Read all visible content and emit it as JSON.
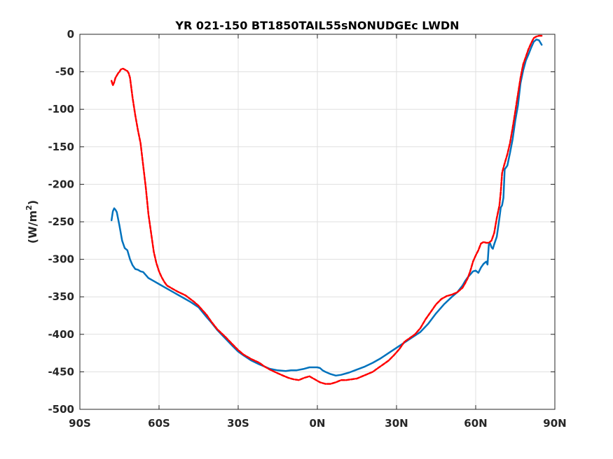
{
  "chart_data": {
    "type": "line",
    "title": "YR 021-150 BT1850TAIL55sNONUDGEc LWDN",
    "ylabel_main": "(W/m",
    "ylabel_sup": "2",
    "ylabel_close": ")",
    "xlim": [
      -90,
      90
    ],
    "ylim": [
      -500,
      0
    ],
    "x_ticks": [
      -90,
      -60,
      -30,
      0,
      30,
      60,
      90
    ],
    "x_tick_labels": [
      "90S",
      "60S",
      "30S",
      "0N",
      "30N",
      "60N",
      "90N"
    ],
    "y_ticks": [
      0,
      -50,
      -100,
      -150,
      -200,
      -250,
      -300,
      -350,
      -400,
      -450,
      -500
    ],
    "y_tick_labels": [
      "0",
      "-50",
      "-100",
      "-150",
      "-200",
      "-250",
      "-300",
      "-350",
      "-400",
      "-450",
      "-500"
    ],
    "grid": true,
    "series": [
      {
        "color": "#0072BD",
        "style": "solid",
        "x": [
          -78,
          -77.5,
          -77,
          -76.5,
          -76,
          -75,
          -74,
          -73,
          -72,
          -71,
          -70,
          -69,
          -68,
          -67,
          -66,
          -64,
          -62,
          -60,
          -58,
          -55,
          -52,
          -50,
          -48,
          -45,
          -42,
          -40,
          -38,
          -35,
          -32,
          -30,
          -28,
          -25,
          -22,
          -20,
          -18,
          -15,
          -12,
          -10,
          -8,
          -5,
          -3,
          -1,
          0,
          1,
          2,
          3,
          5,
          7,
          9,
          12,
          15,
          18,
          21,
          24,
          27,
          30,
          33,
          36,
          39,
          42,
          45,
          48,
          51,
          53,
          55,
          56,
          57,
          58,
          59,
          60,
          61,
          62,
          63,
          64,
          64.5,
          65,
          65.5,
          66,
          66.5,
          67,
          68,
          69,
          69.5,
          70,
          70.5,
          71,
          72,
          73,
          74,
          75,
          76,
          77,
          78,
          79,
          80,
          81,
          82,
          83,
          84,
          85
        ],
        "y": [
          -248,
          -236,
          -232,
          -234,
          -237,
          -255,
          -275,
          -285,
          -288,
          -300,
          -308,
          -313,
          -314,
          -316,
          -317,
          -325,
          -329,
          -333,
          -337,
          -343,
          -349,
          -353,
          -357,
          -364,
          -377,
          -385,
          -394,
          -405,
          -416,
          -423,
          -428,
          -435,
          -440,
          -443,
          -446,
          -448,
          -449,
          -448,
          -448,
          -446,
          -444,
          -444,
          -444,
          -445,
          -448,
          -450,
          -453,
          -455,
          -454,
          -451,
          -447,
          -443,
          -438,
          -432,
          -425,
          -418,
          -411,
          -404,
          -397,
          -386,
          -372,
          -360,
          -350,
          -344,
          -335,
          -329,
          -324,
          -320,
          -316,
          -315,
          -318,
          -311,
          -306,
          -303,
          -307,
          -280,
          -279,
          -284,
          -286,
          -280,
          -270,
          -245,
          -231,
          -228,
          -218,
          -180,
          -175,
          -158,
          -140,
          -115,
          -95,
          -65,
          -48,
          -35,
          -27,
          -18,
          -10,
          -7,
          -8,
          -14
        ]
      },
      {
        "color": "#FF0000",
        "style": "dashed",
        "x": [
          -78,
          -77.5,
          -77,
          -76.5,
          -76,
          -75.5,
          -75,
          -74.5,
          -74,
          -73.5,
          -73,
          -72.5,
          -72,
          -71.5,
          -71,
          -70,
          -69,
          -68,
          -67,
          -66,
          -65,
          -64,
          -63,
          -62,
          -61,
          -60,
          -59,
          -58,
          -57,
          -55,
          -53,
          -50,
          -47,
          -45,
          -42,
          -40,
          -38,
          -35,
          -32,
          -30,
          -28,
          -25,
          -22,
          -20,
          -18,
          -15,
          -13,
          -11,
          -9,
          -7,
          -5,
          -3,
          -1,
          0,
          1,
          3,
          5,
          7,
          9,
          11,
          13,
          15,
          17,
          19,
          21,
          23,
          25,
          27,
          29,
          31,
          33,
          35,
          37,
          39,
          41,
          43,
          45,
          47,
          49,
          51,
          53,
          55,
          56,
          57,
          58,
          59,
          60,
          61,
          62,
          63,
          64,
          65,
          66,
          67,
          68,
          69,
          69.5,
          70,
          70.5,
          71,
          72,
          73,
          74,
          75,
          76,
          77,
          78,
          79,
          80,
          81,
          82,
          83,
          84,
          85
        ],
        "y": [
          -62,
          -68,
          -64,
          -58,
          -55,
          -52,
          -50,
          -47,
          -46,
          -46,
          -47,
          -48,
          -49,
          -52,
          -58,
          -85,
          -108,
          -128,
          -145,
          -175,
          -205,
          -240,
          -265,
          -290,
          -305,
          -316,
          -324,
          -330,
          -335,
          -339,
          -343,
          -348,
          -356,
          -362,
          -374,
          -384,
          -393,
          -403,
          -414,
          -421,
          -427,
          -433,
          -438,
          -443,
          -447,
          -452,
          -455,
          -458,
          -460,
          -461,
          -458,
          -456,
          -460,
          -462,
          -464,
          -466,
          -466,
          -464,
          -461,
          -461,
          -460,
          -459,
          -456,
          -453,
          -450,
          -445,
          -440,
          -435,
          -428,
          -420,
          -410,
          -405,
          -400,
          -392,
          -380,
          -370,
          -360,
          -353,
          -349,
          -347,
          -344,
          -338,
          -332,
          -325,
          -315,
          -303,
          -295,
          -288,
          -279,
          -277,
          -278,
          -278,
          -275,
          -265,
          -245,
          -228,
          -210,
          -185,
          -178,
          -172,
          -160,
          -145,
          -125,
          -103,
          -80,
          -58,
          -40,
          -30,
          -20,
          -12,
          -5,
          -3,
          -2,
          -2
        ]
      }
    ]
  }
}
